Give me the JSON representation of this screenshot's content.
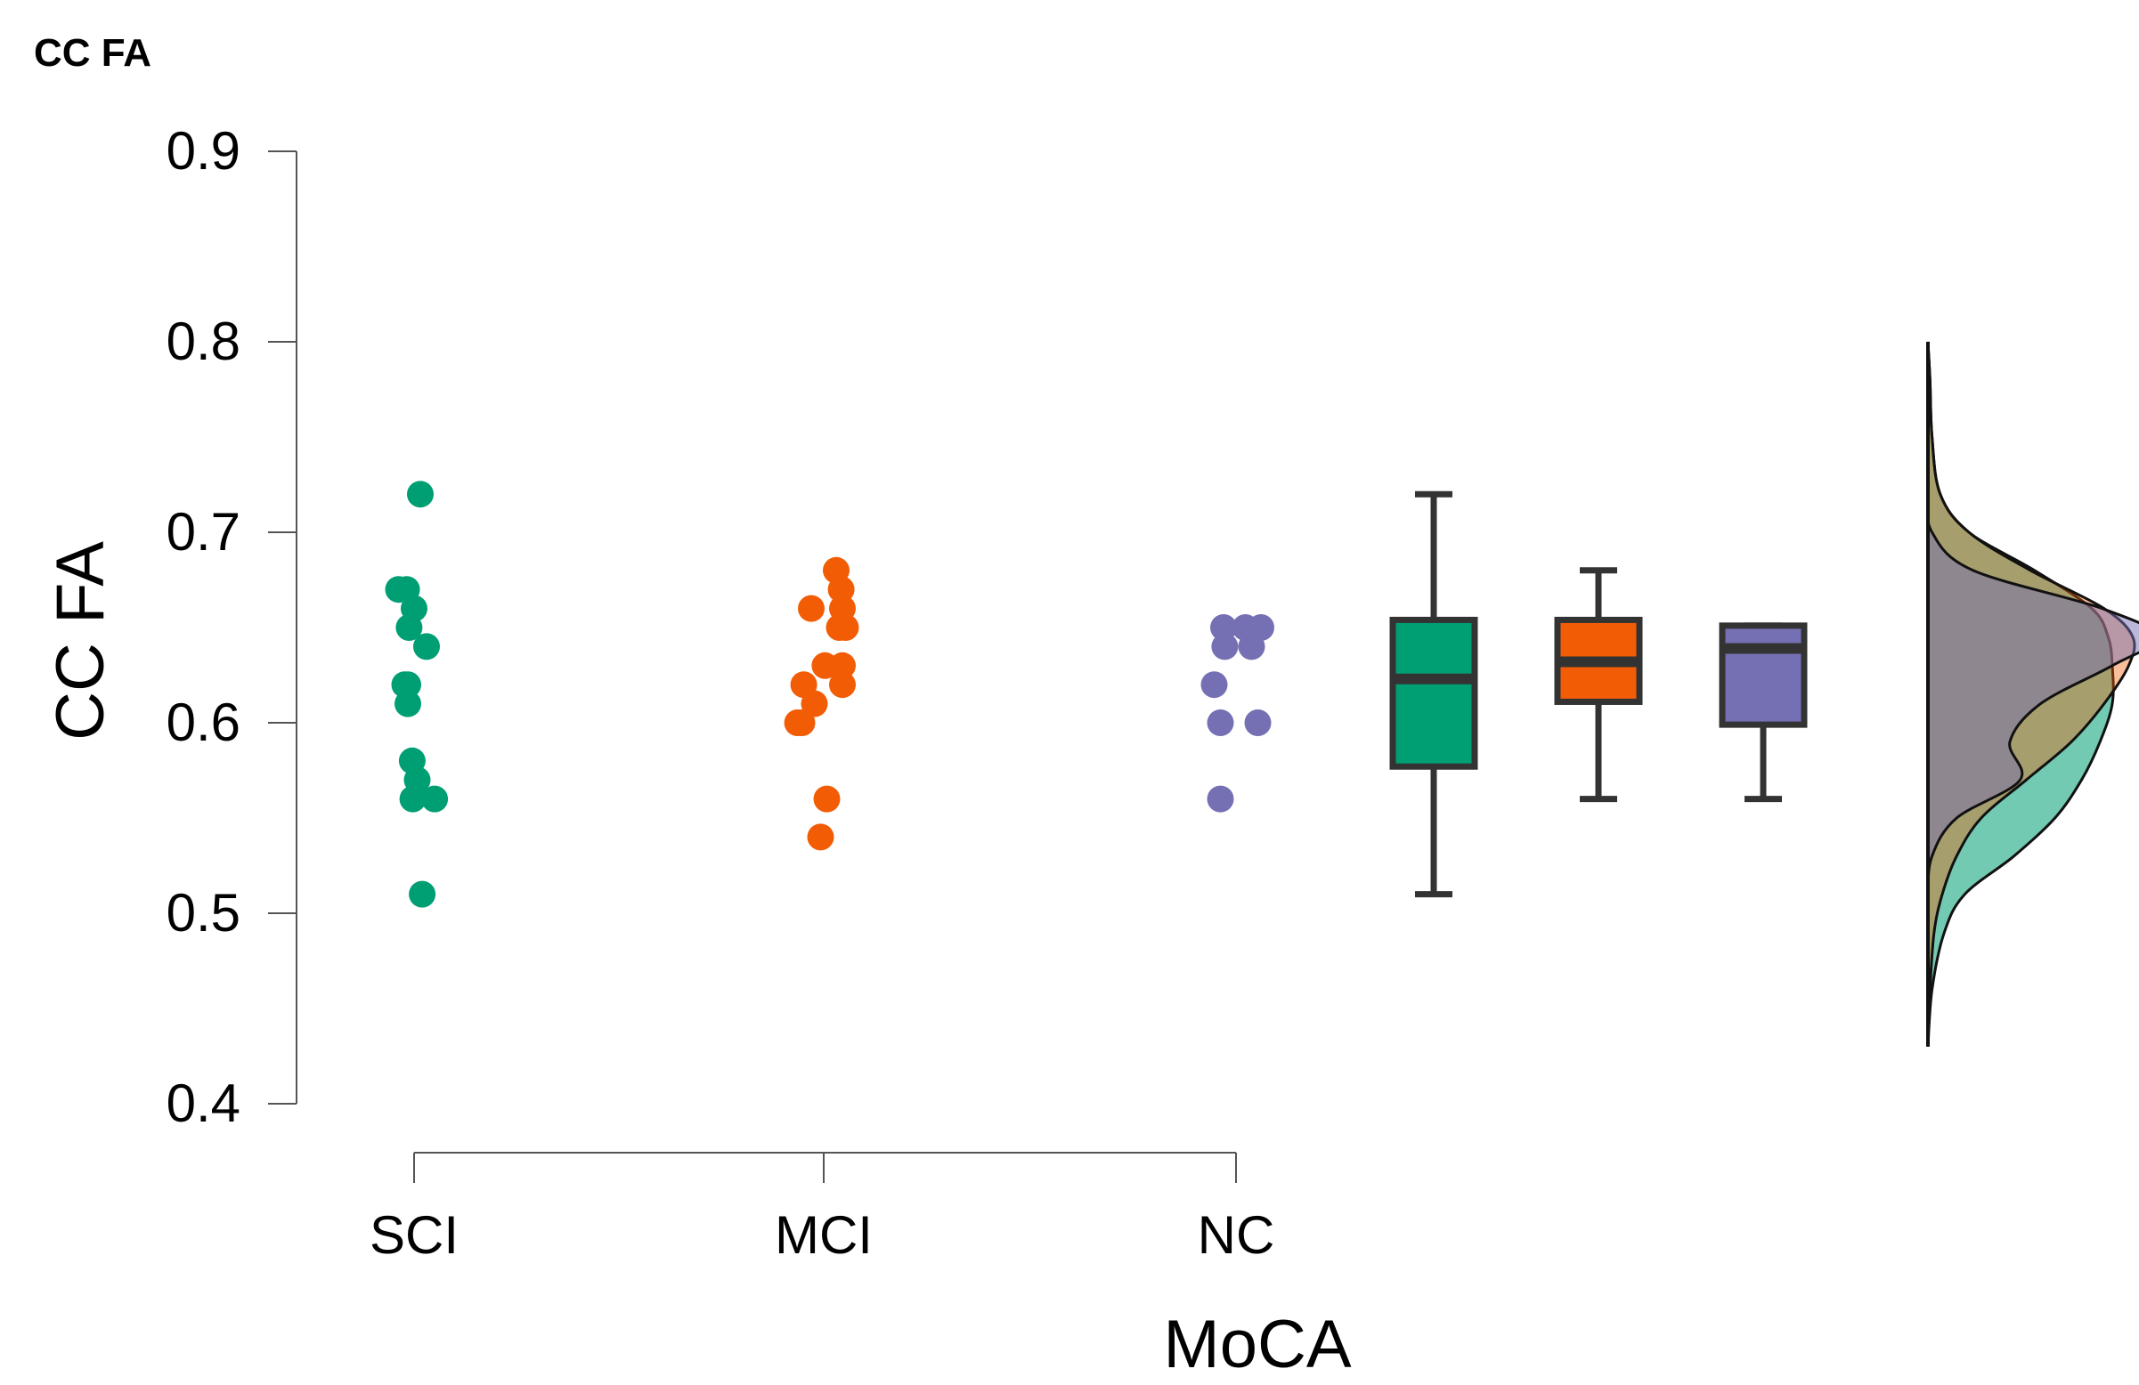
{
  "chart_data": {
    "type": "scatter",
    "title": "CC FA",
    "xlabel": "MoCA",
    "ylabel": "CC FA",
    "ylim": [
      0.4,
      0.9
    ],
    "yticks": [
      "0.4",
      "0.5",
      "0.6",
      "0.7",
      "0.8",
      "0.9"
    ],
    "categories": [
      "SCI",
      "MCI",
      "NC"
    ],
    "colors": {
      "SCI": "#009E73",
      "MCI": "#F25C05",
      "NC": "#7570B3"
    },
    "series": [
      {
        "name": "SCI",
        "points": [
          {
            "jitter": 0.1,
            "value": 0.72
          },
          {
            "jitter": -0.25,
            "value": 0.67
          },
          {
            "jitter": -0.12,
            "value": 0.67
          },
          {
            "jitter": 0.0,
            "value": 0.66
          },
          {
            "jitter": -0.08,
            "value": 0.65
          },
          {
            "jitter": 0.2,
            "value": 0.64
          },
          {
            "jitter": -0.15,
            "value": 0.62
          },
          {
            "jitter": -0.1,
            "value": 0.62
          },
          {
            "jitter": -0.1,
            "value": 0.61
          },
          {
            "jitter": -0.03,
            "value": 0.58
          },
          {
            "jitter": 0.05,
            "value": 0.57
          },
          {
            "jitter": 0.33,
            "value": 0.56
          },
          {
            "jitter": -0.02,
            "value": 0.56
          },
          {
            "jitter": 0.13,
            "value": 0.51
          }
        ],
        "box": {
          "min": 0.51,
          "q1": 0.577,
          "median": 0.623,
          "q3": 0.654,
          "max": 0.72
        }
      },
      {
        "name": "MCI",
        "points": [
          {
            "jitter": 0.2,
            "value": 0.68
          },
          {
            "jitter": 0.28,
            "value": 0.67
          },
          {
            "jitter": -0.2,
            "value": 0.66
          },
          {
            "jitter": 0.3,
            "value": 0.66
          },
          {
            "jitter": 0.25,
            "value": 0.65
          },
          {
            "jitter": 0.35,
            "value": 0.65
          },
          {
            "jitter": 0.02,
            "value": 0.63
          },
          {
            "jitter": 0.3,
            "value": 0.63
          },
          {
            "jitter": 0.3,
            "value": 0.62
          },
          {
            "jitter": -0.32,
            "value": 0.62
          },
          {
            "jitter": -0.15,
            "value": 0.61
          },
          {
            "jitter": -0.42,
            "value": 0.6
          },
          {
            "jitter": -0.35,
            "value": 0.6
          },
          {
            "jitter": 0.05,
            "value": 0.56
          },
          {
            "jitter": -0.05,
            "value": 0.54
          }
        ],
        "box": {
          "min": 0.56,
          "q1": 0.611,
          "median": 0.632,
          "q3": 0.654,
          "max": 0.68
        }
      },
      {
        "name": "NC",
        "points": [
          {
            "jitter": -0.2,
            "value": 0.65
          },
          {
            "jitter": 0.15,
            "value": 0.65
          },
          {
            "jitter": 0.4,
            "value": 0.65
          },
          {
            "jitter": -0.18,
            "value": 0.64
          },
          {
            "jitter": 0.25,
            "value": 0.64
          },
          {
            "jitter": -0.35,
            "value": 0.62
          },
          {
            "jitter": -0.25,
            "value": 0.6
          },
          {
            "jitter": 0.35,
            "value": 0.6
          },
          {
            "jitter": -0.25,
            "value": 0.56
          }
        ],
        "box": {
          "min": 0.56,
          "q1": 0.599,
          "median": 0.639,
          "q3": 0.651,
          "max": 0.651
        }
      }
    ],
    "density": {
      "y": [
        0.43,
        0.46,
        0.49,
        0.51,
        0.53,
        0.55,
        0.57,
        0.59,
        0.61,
        0.63,
        0.645,
        0.66,
        0.68,
        0.7,
        0.72,
        0.75,
        0.78,
        0.8
      ],
      "SCI": [
        0.0,
        0.02,
        0.08,
        0.18,
        0.42,
        0.62,
        0.75,
        0.84,
        0.9,
        0.9,
        0.88,
        0.8,
        0.52,
        0.2,
        0.06,
        0.02,
        0.01,
        0.0
      ],
      "MCI": [
        0.0,
        0.01,
        0.03,
        0.07,
        0.14,
        0.26,
        0.48,
        0.7,
        0.86,
        0.98,
        1.0,
        0.86,
        0.5,
        0.2,
        0.06,
        0.02,
        0.01,
        0.0
      ],
      "NC": [
        0.0,
        0.0,
        0.0,
        0.0,
        0.02,
        0.14,
        0.45,
        0.4,
        0.55,
        0.9,
        1.12,
        0.85,
        0.22,
        0.02,
        0.0,
        0.0,
        0.0,
        0.0
      ]
    }
  }
}
